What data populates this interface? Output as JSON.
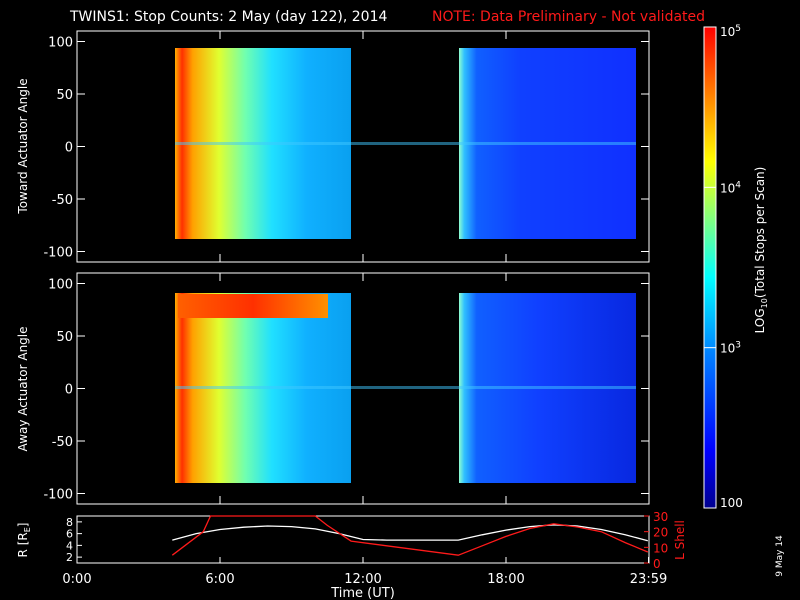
{
  "header": {
    "title": "TWINS1: Stop Counts:  2 May (day 122), 2014",
    "note": "NOTE: Data Preliminary - Not validated"
  },
  "stamp": "9 May 14",
  "chart_data": [
    {
      "type": "heatmap",
      "ylabel": "Toward Actuator Angle",
      "ylim": [
        -110,
        110
      ],
      "yticks": [
        "100",
        "50",
        "0",
        "-50",
        "-100"
      ],
      "xlim_hours": [
        0,
        24
      ],
      "data_extent": {
        "angle": [
          -88,
          90
        ]
      },
      "blocks": [
        {
          "from_hour": 4.0,
          "to_hour": 11.5,
          "level_start": "high",
          "level_end": "low-mid"
        },
        {
          "from_hour": 16.0,
          "to_hour": 23.95,
          "level_start": "mid",
          "level_end": "low"
        }
      ],
      "colorbar": {
        "label": "LOG10(Total Stops per Scan)",
        "min": 100,
        "max": 100000,
        "ticks": [
          "10^5",
          "10^4",
          "10^3",
          "100"
        ],
        "scale": "log"
      }
    },
    {
      "type": "heatmap",
      "ylabel": "Away Actuator Angle",
      "ylim": [
        -110,
        110
      ],
      "yticks": [
        "100",
        "50",
        "0",
        "-50",
        "-100"
      ],
      "xlim_hours": [
        0,
        24
      ],
      "data_extent": {
        "angle": [
          -88,
          90
        ]
      },
      "blocks": [
        {
          "from_hour": 4.0,
          "to_hour": 11.5,
          "level_start": "high",
          "level_end": "low-mid",
          "band_angle": [
            68,
            88
          ]
        },
        {
          "from_hour": 16.0,
          "to_hour": 23.95,
          "level_start": "mid",
          "level_end": "low"
        }
      ]
    },
    {
      "type": "line",
      "xlabel": "Time (UT)",
      "x_ticks": [
        "0:00",
        "6:00",
        "12:00",
        "18:00",
        "23:59"
      ],
      "left_axis": {
        "label": "R [Rₑ]",
        "label_main": "R [R",
        "label_sub": "E",
        "label_close": "]",
        "ticks": [
          "8",
          "6",
          "4",
          "2"
        ],
        "ylim": [
          1,
          9
        ]
      },
      "right_axis": {
        "label": "L Shell",
        "ticks": [
          "30",
          "20",
          "10",
          "0"
        ],
        "ylim": [
          0,
          30
        ],
        "color": "#ff1a1a"
      },
      "series": [
        {
          "axis": "left",
          "color": "#ffffff",
          "x": [
            4.0,
            5.0,
            6.0,
            7.0,
            8.0,
            9.0,
            10.0,
            11.0,
            12.0,
            13.0,
            14.0,
            15.0,
            16.0,
            17.0,
            18.0,
            19.0,
            20.0,
            21.0,
            22.0,
            23.0,
            23.95
          ],
          "y": [
            4.9,
            6.0,
            6.7,
            7.1,
            7.3,
            7.2,
            6.8,
            6.0,
            5.0,
            4.9,
            4.9,
            4.9,
            4.9,
            5.8,
            6.6,
            7.2,
            7.5,
            7.3,
            6.7,
            5.8,
            4.8
          ]
        },
        {
          "axis": "right",
          "color": "#ff1a1a",
          "x": [
            4.0,
            5.3,
            5.6,
            10.0,
            10.5,
            11.5,
            16.0,
            17.0,
            18.0,
            19.0,
            20.0,
            21.0,
            22.0,
            23.0,
            23.95
          ],
          "y": [
            5.0,
            20.0,
            30.0,
            30.0,
            24.0,
            14.0,
            5.0,
            11.0,
            17.0,
            22.0,
            25.0,
            23.0,
            20.0,
            13.0,
            7.0
          ]
        }
      ]
    }
  ]
}
